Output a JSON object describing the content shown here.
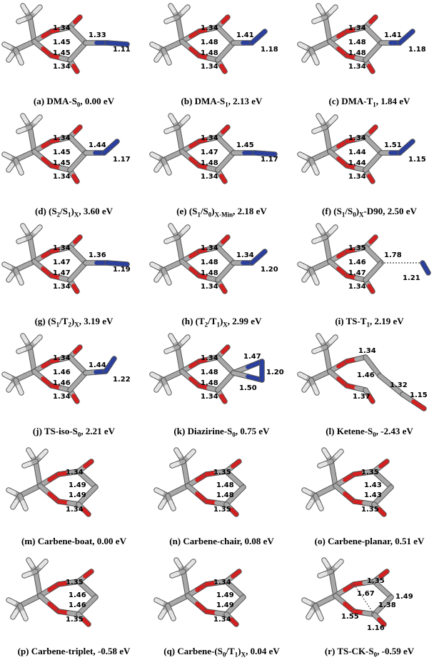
{
  "panels": [
    {
      "letter": "(a)",
      "caption_parts": [
        [
          "DMA-S",
          ""
        ],
        [
          "0",
          "sub"
        ],
        [
          ", 0.00 eV",
          ""
        ]
      ],
      "bonds": [
        "1.34",
        "1.45",
        "1.45",
        "1.34",
        "1.33",
        "1.11"
      ],
      "variant": "dma"
    },
    {
      "letter": "(b)",
      "caption_parts": [
        [
          "DMA-S",
          ""
        ],
        [
          "1",
          "sub"
        ],
        [
          ", 2.13 eV",
          ""
        ]
      ],
      "bonds": [
        "1.34",
        "1.48",
        "1.48",
        "1.34",
        "1.41",
        "1.18"
      ],
      "variant": "dma-bent"
    },
    {
      "letter": "(c)",
      "caption_parts": [
        [
          "DMA-T",
          ""
        ],
        [
          "1",
          "sub"
        ],
        [
          ", 1.84 eV",
          ""
        ]
      ],
      "bonds": [
        "1.34",
        "1.48",
        "1.48",
        "1.34",
        "1.41",
        "1.18"
      ],
      "variant": "dma-bent"
    },
    {
      "letter": "(d)",
      "caption_parts": [
        [
          "(S",
          ""
        ],
        [
          "2",
          "sub"
        ],
        [
          "/S",
          ""
        ],
        [
          "1",
          "sub"
        ],
        [
          ")",
          ""
        ],
        [
          "X",
          "sub"
        ],
        [
          ", 3.60 eV",
          ""
        ]
      ],
      "bonds": [
        "1.34",
        "1.45",
        "1.45",
        "1.34",
        "1.44",
        "1.17"
      ],
      "variant": "dma-bent"
    },
    {
      "letter": "(e)",
      "caption_parts": [
        [
          "(S",
          ""
        ],
        [
          "1",
          "sub"
        ],
        [
          "/S",
          ""
        ],
        [
          "0",
          "sub"
        ],
        [
          ")",
          ""
        ],
        [
          "X-Min",
          "sub"
        ],
        [
          ", 2.18 eV",
          ""
        ]
      ],
      "bonds": [
        "1.34",
        "1.47",
        "1.48",
        "1.34",
        "1.45",
        "1.17"
      ],
      "variant": "dma"
    },
    {
      "letter": "(f)",
      "caption_parts": [
        [
          "(S",
          ""
        ],
        [
          "1",
          "sub"
        ],
        [
          "/S",
          ""
        ],
        [
          "0",
          "sub"
        ],
        [
          ")",
          ""
        ],
        [
          "X",
          "sub"
        ],
        [
          "-D90, 2.50 eV",
          ""
        ]
      ],
      "bonds": [
        "1.34",
        "1.44",
        "1.44",
        "1.34",
        "1.51",
        "1.15"
      ],
      "variant": "dma-bent"
    },
    {
      "letter": "(g)",
      "caption_parts": [
        [
          "(S",
          ""
        ],
        [
          "1",
          "sub"
        ],
        [
          "/T",
          ""
        ],
        [
          "2",
          "sub"
        ],
        [
          ")",
          ""
        ],
        [
          "X",
          "sub"
        ],
        [
          ", 3.19 eV",
          ""
        ]
      ],
      "bonds": [
        "1.34",
        "1.47",
        "1.47",
        "1.34",
        "1.36",
        "1.19"
      ],
      "variant": "dma"
    },
    {
      "letter": "(h)",
      "caption_parts": [
        [
          "(T",
          ""
        ],
        [
          "2",
          "sub"
        ],
        [
          "/T",
          ""
        ],
        [
          "1",
          "sub"
        ],
        [
          ")",
          ""
        ],
        [
          "X",
          "sub"
        ],
        [
          ", 2.99 eV",
          ""
        ]
      ],
      "bonds": [
        "1.34",
        "1.48",
        "1.48",
        "1.34",
        "1.34",
        "1.20"
      ],
      "variant": "dma-bent"
    },
    {
      "letter": "(i)",
      "caption_parts": [
        [
          "TS-T",
          ""
        ],
        [
          "1",
          "sub"
        ],
        [
          ", 2.19 eV",
          ""
        ]
      ],
      "bonds": [
        "1.35",
        "1.46",
        "1.47",
        "1.34",
        "1.78",
        "1.21"
      ],
      "variant": "ts"
    },
    {
      "letter": "(j)",
      "caption_parts": [
        [
          "TS-iso-S",
          ""
        ],
        [
          "0",
          "sub"
        ],
        [
          ", 2.21 eV",
          ""
        ]
      ],
      "bonds": [
        "1.34",
        "1.46",
        "1.46",
        "1.34",
        "1.44",
        "1.22"
      ],
      "variant": "dma-up"
    },
    {
      "letter": "(k)",
      "caption_parts": [
        [
          "Diazirine-S",
          ""
        ],
        [
          "0",
          "sub"
        ],
        [
          ", 0.75 eV",
          ""
        ]
      ],
      "bonds": [
        "1.34",
        "1.48",
        "1.48",
        "1.34",
        "1.47",
        "1.20",
        "1.50"
      ],
      "variant": "diazirine"
    },
    {
      "letter": "(l)",
      "caption_parts": [
        [
          "Ketene-S",
          ""
        ],
        [
          "0",
          "sub"
        ],
        [
          ", -2.43 eV",
          ""
        ]
      ],
      "bonds": [
        "1.34",
        "1.46",
        "1.37",
        "1.32",
        "1.15"
      ],
      "variant": "ketene"
    },
    {
      "letter": "(m)",
      "caption_parts": [
        [
          "Carbene-boat, 0.00 eV",
          ""
        ]
      ],
      "bonds": [
        "1.34",
        "1.49",
        "1.49",
        "1.34"
      ],
      "variant": "carbene"
    },
    {
      "letter": "(n)",
      "caption_parts": [
        [
          "Carbene-chair, 0.08 eV",
          ""
        ]
      ],
      "bonds": [
        "1.35",
        "1.48",
        "1.48",
        "1.35"
      ],
      "variant": "carbene"
    },
    {
      "letter": "(o)",
      "caption_parts": [
        [
          "Carbene-planar, 0.51 eV",
          ""
        ]
      ],
      "bonds": [
        "1.35",
        "1.43",
        "1.43",
        "1.35"
      ],
      "variant": "carbene"
    },
    {
      "letter": "(p)",
      "caption_parts": [
        [
          "Carbene-triplet, -0.58 eV",
          ""
        ]
      ],
      "bonds": [
        "1.35",
        "1.46",
        "1.46",
        "1.35"
      ],
      "variant": "carbene"
    },
    {
      "letter": "(q)",
      "caption_parts": [
        [
          "Carbene-(S",
          ""
        ],
        [
          "0",
          "sub"
        ],
        [
          "/T",
          ""
        ],
        [
          "1",
          "sub"
        ],
        [
          ")",
          ""
        ],
        [
          "X",
          "sub"
        ],
        [
          ", 0.04 eV",
          ""
        ]
      ],
      "bonds": [
        "1.34",
        "1.49",
        "1.49",
        "1.34"
      ],
      "variant": "carbene"
    },
    {
      "letter": "(r)",
      "caption_parts": [
        [
          "TS-CK-S",
          ""
        ],
        [
          "0",
          "sub"
        ],
        [
          ", -0.59 eV",
          ""
        ]
      ],
      "bonds": [
        "1.35",
        "1.67",
        "1.49",
        "1.55",
        "1.38",
        "1.16"
      ],
      "variant": "tsck"
    }
  ],
  "colors": {
    "carbon": "#a8a8a8",
    "oxygen": "#d42020",
    "nitrogen": "#2a3f9e",
    "hydrogen": "#e4e4e4"
  }
}
